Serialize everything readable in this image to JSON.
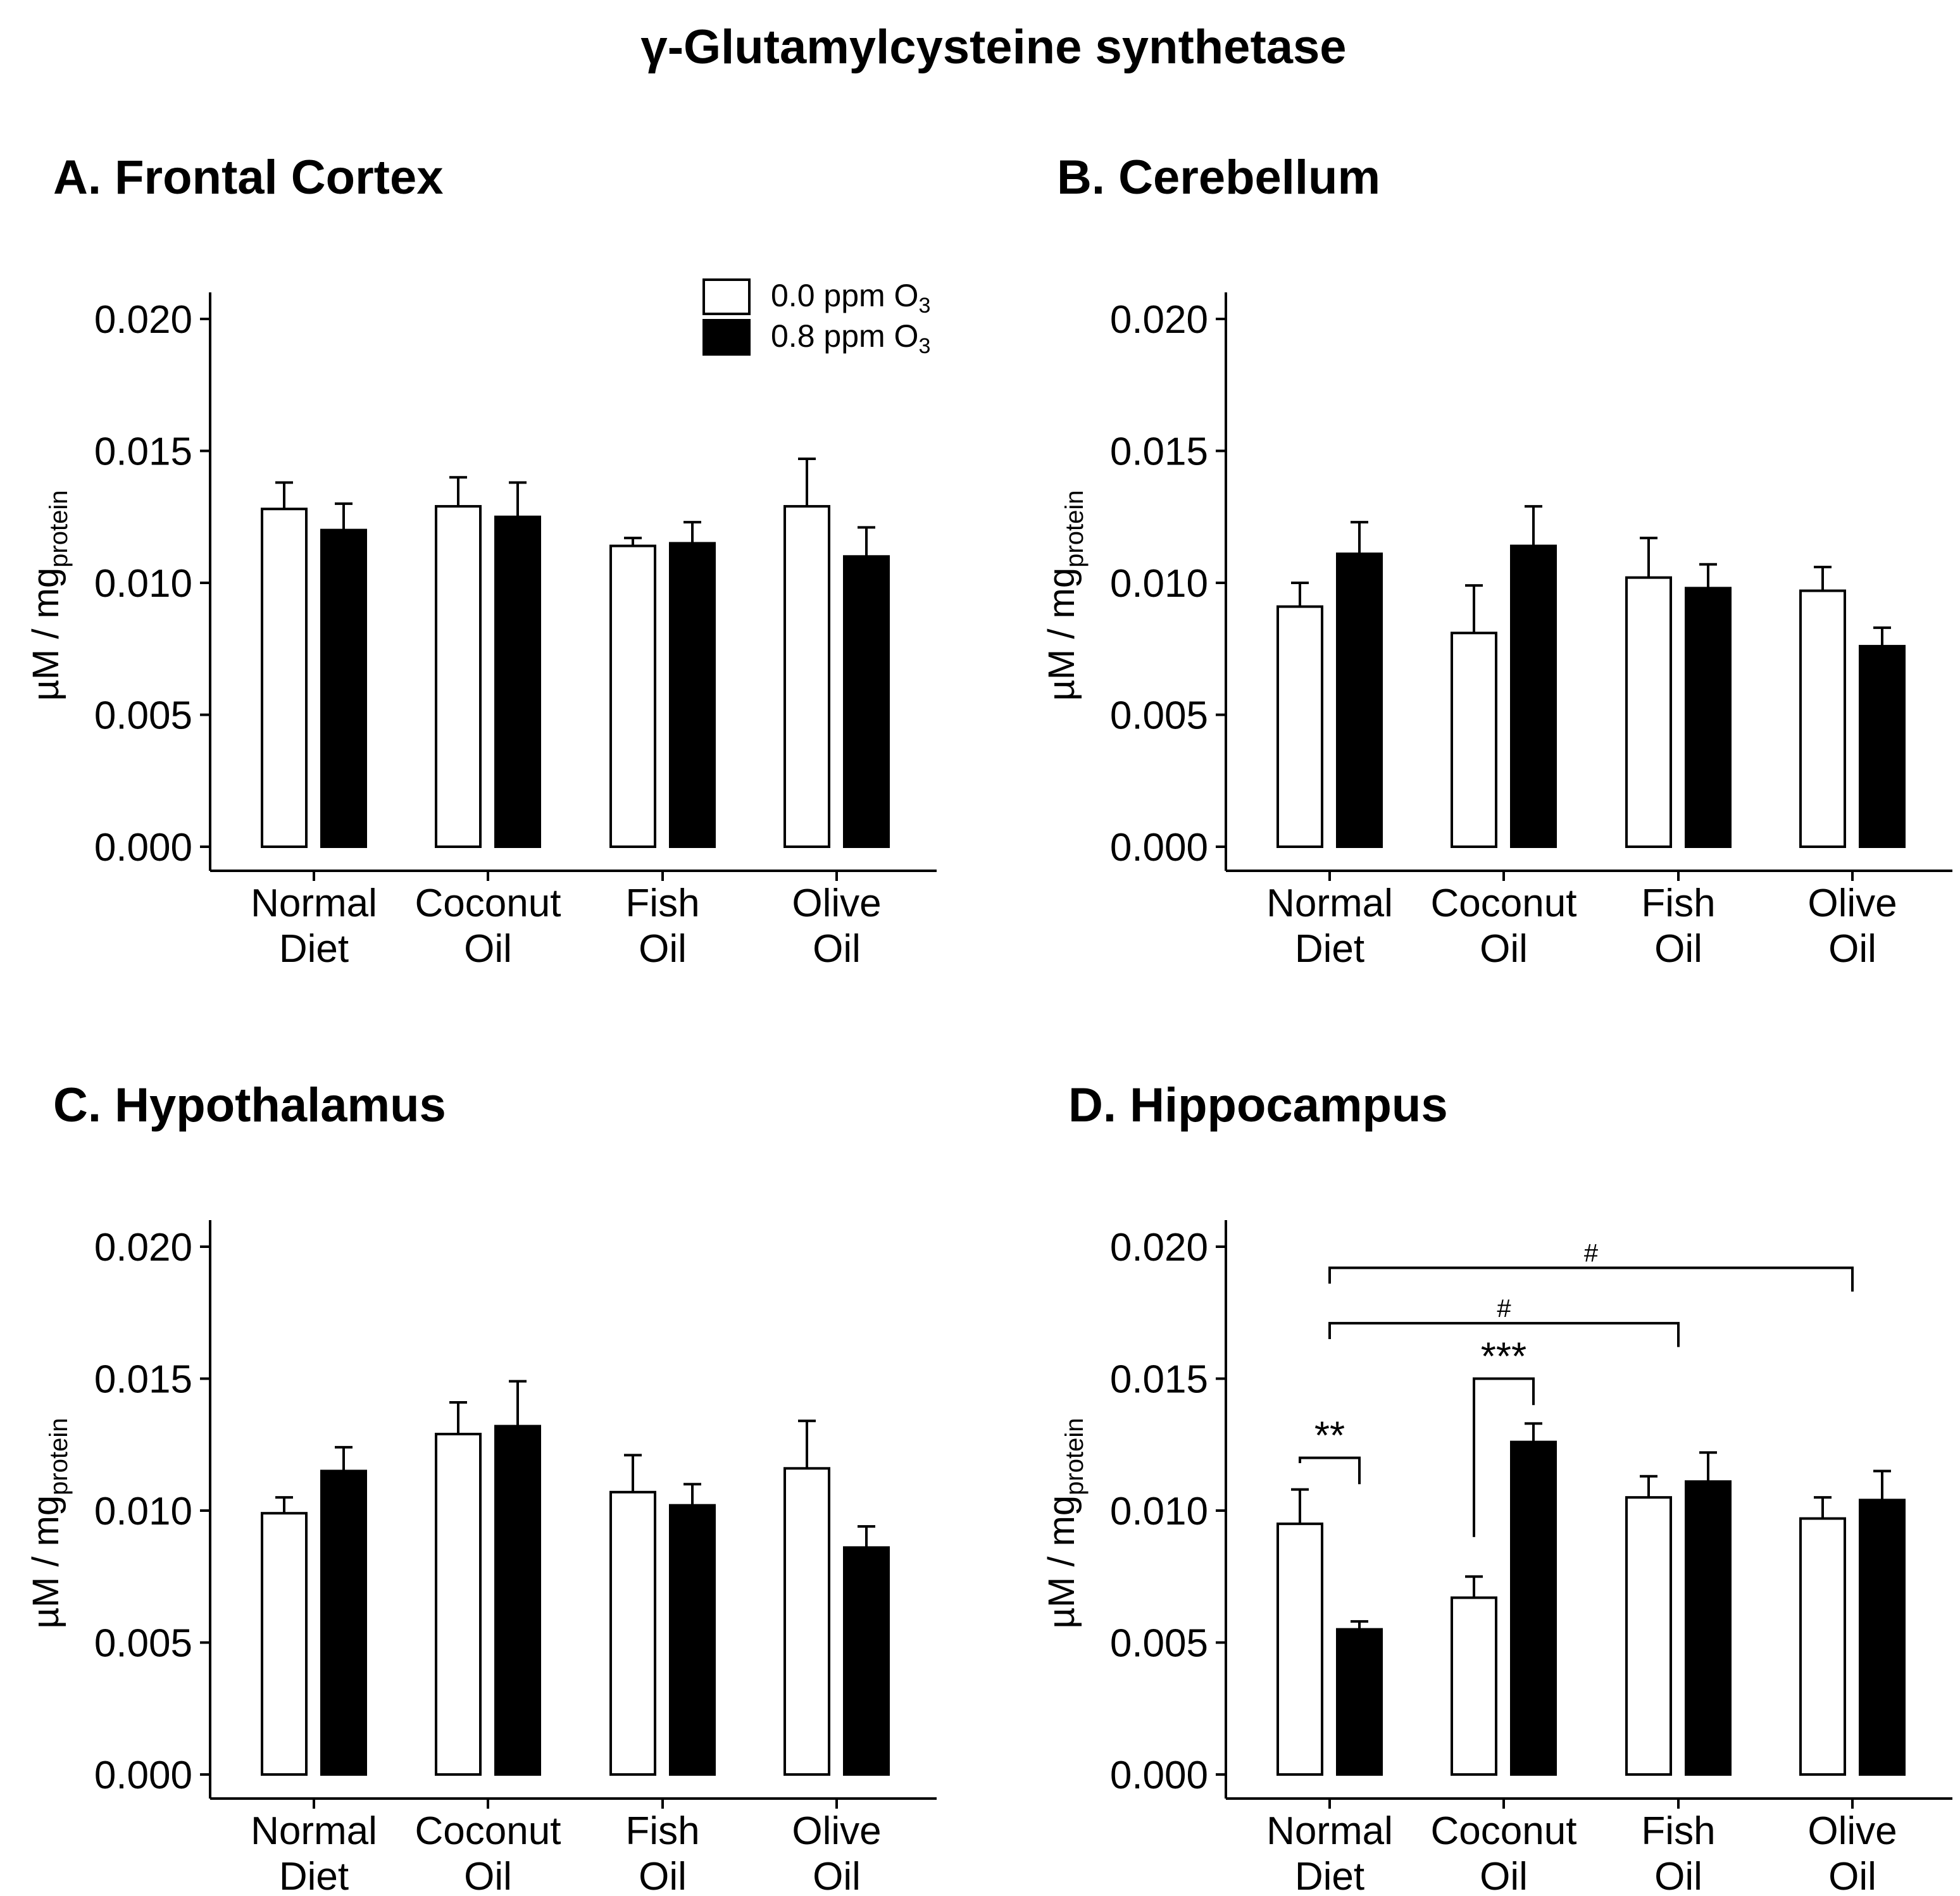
{
  "figure_title": "γ-Glutamylcysteine synthetase",
  "legend": {
    "items": [
      {
        "label": "0.0 ppm O",
        "sub": "3",
        "fill": "#ffffff"
      },
      {
        "label": "0.8 ppm O",
        "sub": "3",
        "fill": "#000000"
      }
    ]
  },
  "axis": {
    "y_label": "µM / mg",
    "y_label_sub": "protein",
    "y_ticks": [
      "0.000",
      "0.005",
      "0.010",
      "0.015",
      "0.020"
    ]
  },
  "colors": {
    "control": "#ffffff",
    "ozone": "#000000",
    "stroke": "#000000"
  },
  "chart_data": [
    {
      "type": "bar",
      "title": "A. Frontal Cortex",
      "categories": [
        [
          "Normal",
          "Diet"
        ],
        [
          "Coconut",
          "Oil"
        ],
        [
          "Fish",
          "Oil"
        ],
        [
          "Olive",
          "Oil"
        ]
      ],
      "ylim": [
        0,
        0.021
      ],
      "series": [
        {
          "name": "0.0 ppm O3",
          "values": [
            0.0128,
            0.0129,
            0.0114,
            0.0129
          ],
          "errors": [
            0.001,
            0.0011,
            0.0003,
            0.0018
          ]
        },
        {
          "name": "0.8 ppm O3",
          "values": [
            0.012,
            0.0125,
            0.0115,
            0.011
          ],
          "errors": [
            0.001,
            0.0013,
            0.0008,
            0.0011
          ]
        }
      ],
      "legend": "top-right",
      "annotations": []
    },
    {
      "type": "bar",
      "title": "B. Cerebellum",
      "categories": [
        [
          "Normal",
          "Diet"
        ],
        [
          "Coconut",
          "Oil"
        ],
        [
          "Fish",
          "Oil"
        ],
        [
          "Olive",
          "Oil"
        ]
      ],
      "ylim": [
        0,
        0.021
      ],
      "series": [
        {
          "name": "0.0 ppm O3",
          "values": [
            0.0091,
            0.0081,
            0.0102,
            0.0097
          ],
          "errors": [
            0.0009,
            0.0018,
            0.0015,
            0.0009
          ]
        },
        {
          "name": "0.8 ppm O3",
          "values": [
            0.0111,
            0.0114,
            0.0098,
            0.0076
          ],
          "errors": [
            0.0012,
            0.0015,
            0.0009,
            0.0007
          ]
        }
      ],
      "annotations": []
    },
    {
      "type": "bar",
      "title": "C. Hypothalamus",
      "categories": [
        [
          "Normal",
          "Diet"
        ],
        [
          "Coconut",
          "Oil"
        ],
        [
          "Fish",
          "Oil"
        ],
        [
          "Olive",
          "Oil"
        ]
      ],
      "ylim": [
        0,
        0.021
      ],
      "series": [
        {
          "name": "0.0 ppm O3",
          "values": [
            0.0099,
            0.0129,
            0.0107,
            0.0116
          ],
          "errors": [
            0.0006,
            0.0012,
            0.0014,
            0.0018
          ]
        },
        {
          "name": "0.8 ppm O3",
          "values": [
            0.0115,
            0.0132,
            0.0102,
            0.0086
          ],
          "errors": [
            0.0009,
            0.0017,
            0.0008,
            0.0008
          ]
        }
      ],
      "annotations": []
    },
    {
      "type": "bar",
      "title": "D. Hippocampus",
      "categories": [
        [
          "Normal",
          "Diet"
        ],
        [
          "Coconut",
          "Oil"
        ],
        [
          "Fish",
          "Oil"
        ],
        [
          "Olive",
          "Oil"
        ]
      ],
      "ylim": [
        0,
        0.021
      ],
      "series": [
        {
          "name": "0.0 ppm O3",
          "values": [
            0.0095,
            0.0067,
            0.0105,
            0.0097
          ],
          "errors": [
            0.0013,
            0.0008,
            0.0008,
            0.0008
          ]
        },
        {
          "name": "0.8 ppm O3",
          "values": [
            0.0055,
            0.0126,
            0.0111,
            0.0104
          ],
          "errors": [
            0.0003,
            0.0007,
            0.0011,
            0.0011
          ]
        }
      ],
      "annotations": [
        {
          "text": "**",
          "from": [
            0,
            0
          ],
          "to": [
            0,
            1
          ],
          "y": 0.012,
          "left_drop": 0.0118,
          "right_drop": 0.011
        },
        {
          "text": "***",
          "from": [
            1,
            0
          ],
          "to": [
            1,
            1
          ],
          "y": 0.015,
          "left_drop": 0.009,
          "right_drop": 0.014
        },
        {
          "text": "#",
          "from": [
            0,
            -1
          ],
          "to": [
            2,
            -1
          ],
          "y": 0.0171,
          "left_drop": 0.0165,
          "right_drop": 0.0162
        },
        {
          "text": "#",
          "from": [
            0,
            -1
          ],
          "to": [
            3,
            -1
          ],
          "y": 0.0192,
          "left_drop": 0.0186,
          "right_drop": 0.0183
        }
      ]
    }
  ]
}
